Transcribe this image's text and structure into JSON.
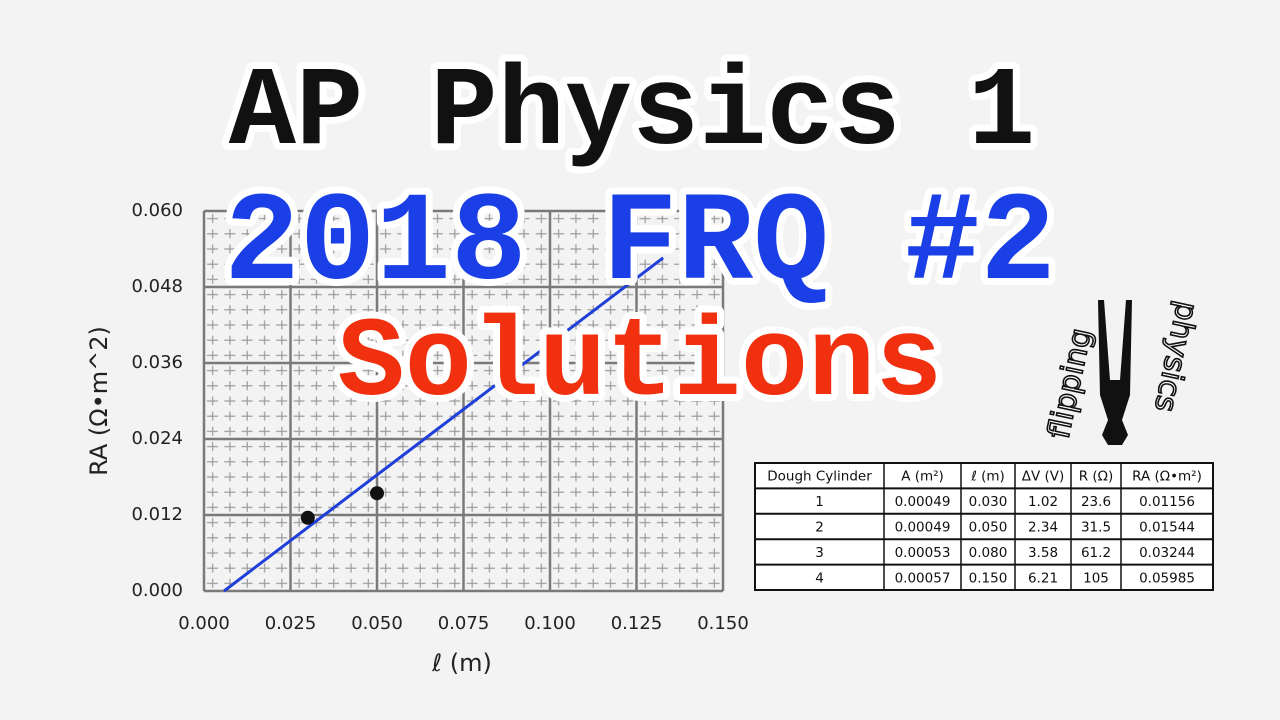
{
  "title": {
    "line1": "AP Physics 1",
    "line2": "2018 FRQ #2",
    "line3": "Solutions"
  },
  "chart_data": {
    "type": "scatter",
    "xlabel": "ℓ (m)",
    "ylabel": "RA (Ω•m^2)",
    "points": {
      "x": [
        0.03,
        0.05
      ],
      "y": [
        0.01156,
        0.01544
      ],
      "color": "#111111"
    },
    "fit_line": {
      "x": [
        0.0058,
        0.1327
      ],
      "y": [
        0,
        0.0526
      ],
      "color": "#1f3fd8"
    },
    "xlim": [
      0,
      0.15
    ],
    "ylim": [
      0,
      0.06
    ],
    "xticks": [
      {
        "value": 0,
        "label": "0.000"
      },
      0.025,
      {
        "value": 0.05,
        "label": "0.050"
      },
      0.075,
      {
        "value": 0.1,
        "label": "0.100"
      },
      0.125,
      {
        "value": 0.15,
        "label": "0.150"
      }
    ],
    "yticks": [
      {
        "value": 0,
        "label": "0.000"
      },
      0.012,
      0.024,
      0.036,
      0.048,
      {
        "value": 0.06,
        "label": "0.060"
      }
    ],
    "grid": true
  },
  "table": {
    "header": [
      "Dough Cylinder",
      "A (m²)",
      "ℓ (m)",
      "ΔV (V)",
      "R (Ω)",
      "RA (Ω•m²)"
    ],
    "rows": [
      [
        "1",
        "0.00049",
        "0.030",
        "1.02",
        "23.6",
        "0.01156"
      ],
      [
        "2",
        "0.00049",
        "0.050",
        "2.34",
        "31.5",
        "0.01544"
      ],
      [
        "3",
        "0.00053",
        "0.080",
        "3.58",
        "61.2",
        "0.03244"
      ],
      [
        "4",
        "0.00057",
        "0.150",
        "6.21",
        "105",
        "0.05985"
      ]
    ]
  },
  "logo": {
    "word1": "flipping",
    "word2": "physics"
  }
}
